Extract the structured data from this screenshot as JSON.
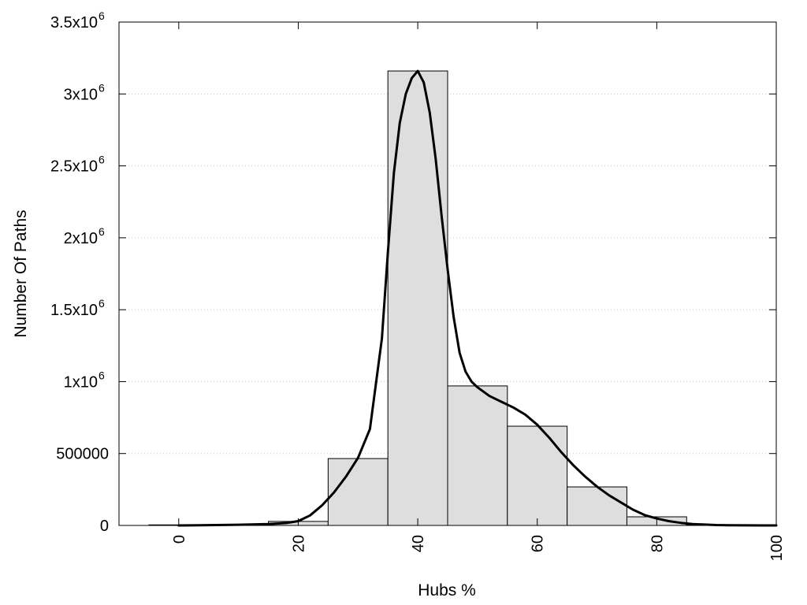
{
  "chart_data": {
    "type": "bar",
    "title": "",
    "xlabel": "Hubs %",
    "ylabel": "Number Of Paths",
    "xlim": [
      -10,
      100
    ],
    "ylim": [
      0,
      3500000
    ],
    "x_ticks": [
      {
        "value": 0,
        "label": "0"
      },
      {
        "value": 20,
        "label": "20"
      },
      {
        "value": 40,
        "label": "40"
      },
      {
        "value": 60,
        "label": "60"
      },
      {
        "value": 80,
        "label": "80"
      },
      {
        "value": 100,
        "label": "100"
      }
    ],
    "y_ticks": [
      {
        "value": 0,
        "base": "0",
        "exp": ""
      },
      {
        "value": 500000,
        "base": "500000",
        "exp": ""
      },
      {
        "value": 1000000,
        "base": "1x10",
        "exp": "6"
      },
      {
        "value": 1500000,
        "base": "1.5x10",
        "exp": "6"
      },
      {
        "value": 2000000,
        "base": "2x10",
        "exp": "6"
      },
      {
        "value": 2500000,
        "base": "2.5x10",
        "exp": "6"
      },
      {
        "value": 3000000,
        "base": "3x10",
        "exp": "6"
      },
      {
        "value": 3500000,
        "base": "3.5x10",
        "exp": "6"
      }
    ],
    "grid": "horizontal-dotted",
    "bin_width": 10,
    "bars": [
      {
        "center": 0,
        "value": 4000
      },
      {
        "center": 10,
        "value": 6000
      },
      {
        "center": 20,
        "value": 28000
      },
      {
        "center": 30,
        "value": 465000
      },
      {
        "center": 40,
        "value": 3160000
      },
      {
        "center": 50,
        "value": 970000
      },
      {
        "center": 60,
        "value": 690000
      },
      {
        "center": 70,
        "value": 268000
      },
      {
        "center": 80,
        "value": 60000
      },
      {
        "center": 90,
        "value": 5000
      }
    ],
    "curve": {
      "x": [
        0,
        5,
        10,
        15,
        18,
        20,
        22,
        24,
        26,
        28,
        30,
        32,
        34,
        35,
        36,
        37,
        38,
        39,
        40,
        41,
        42,
        43,
        44,
        45,
        46,
        47,
        48,
        49,
        50,
        52,
        54,
        56,
        58,
        60,
        62,
        64,
        66,
        68,
        70,
        72,
        74,
        76,
        78,
        80,
        82,
        84,
        86,
        88,
        90,
        92,
        95,
        98,
        100
      ],
      "y": [
        0,
        2000,
        5000,
        10000,
        17000,
        30000,
        70000,
        140000,
        230000,
        340000,
        470000,
        670000,
        1300000,
        1900000,
        2450000,
        2800000,
        3000000,
        3110000,
        3160000,
        3080000,
        2870000,
        2550000,
        2150000,
        1780000,
        1450000,
        1200000,
        1070000,
        1000000,
        960000,
        900000,
        860000,
        820000,
        770000,
        700000,
        610000,
        510000,
        420000,
        340000,
        270000,
        210000,
        160000,
        110000,
        72000,
        48000,
        30000,
        18000,
        10000,
        6000,
        3000,
        1500,
        500,
        0,
        0
      ]
    },
    "colors": {
      "bar_fill": "#dedede",
      "bar_stroke": "#000000",
      "curve": "#000000",
      "grid": "#c8c8c8"
    }
  }
}
